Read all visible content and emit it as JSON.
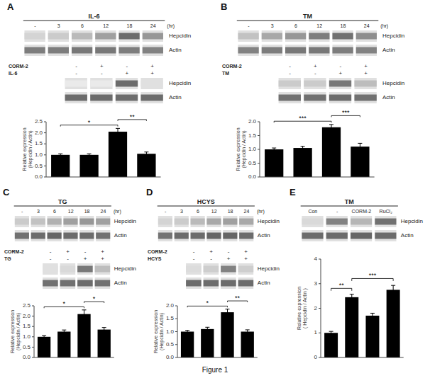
{
  "chart_data": [
    {
      "type": "blot",
      "panel": "A",
      "title": "IL-6",
      "categories": [
        "-",
        "3",
        "6",
        "12",
        "18",
        "24"
      ],
      "x_unit": "(hr)",
      "series": [
        {
          "name": "Hepcidin",
          "values": [
            0.25,
            0.3,
            0.4,
            0.55,
            0.85,
            0.6
          ]
        },
        {
          "name": "Actin",
          "values": [
            0.75,
            0.75,
            0.78,
            0.78,
            0.75,
            0.72
          ]
        }
      ]
    },
    {
      "type": "blot",
      "conditions": [
        {
          "name": "CORM-2",
          "labels": [
            "-",
            "+",
            "-",
            "+"
          ]
        },
        {
          "name": "IL-6",
          "labels": [
            "-",
            "-",
            "+",
            "+"
          ]
        }
      ],
      "series": [
        {
          "name": "Hepcidin",
          "values": [
            0.12,
            0.12,
            0.85,
            0.18
          ]
        },
        {
          "name": "Actin",
          "values": [
            0.85,
            0.85,
            0.85,
            0.85
          ]
        }
      ]
    },
    {
      "type": "bar",
      "categories": [
        null,
        null,
        null,
        null
      ],
      "values": [
        1.0,
        1.0,
        2.05,
        1.05
      ],
      "errors": [
        0.05,
        0.05,
        0.15,
        0.08
      ],
      "color": "#000000",
      "ylim": [
        0,
        2.5
      ],
      "yticks": [
        {
          "value": 0,
          "label": "0.0"
        },
        {
          "value": 0.5,
          "label": "0.5"
        },
        {
          "value": 1.0,
          "label": "1.0"
        },
        {
          "value": 1.5,
          "label": "1.5"
        },
        {
          "value": 2.0,
          "label": "2.0"
        },
        {
          "value": 2.5,
          "label": "2.5"
        }
      ],
      "y_label": "Relative expression\n(Hepcidin / Actin)",
      "significance": [
        {
          "from": 0,
          "to": 2,
          "label": "*"
        },
        {
          "from": 2,
          "to": 3,
          "label": "**"
        }
      ]
    },
    {
      "type": "blot",
      "panel": "B",
      "title": "TM",
      "categories": [
        "-",
        "3",
        "6",
        "12",
        "18",
        "24"
      ],
      "x_unit": "(hr)",
      "series": [
        {
          "name": "Hepcidin",
          "values": [
            0.35,
            0.5,
            0.6,
            0.75,
            0.82,
            0.65
          ]
        },
        {
          "name": "Actin",
          "values": [
            0.72,
            0.75,
            0.78,
            0.78,
            0.75,
            0.72
          ]
        }
      ]
    },
    {
      "type": "blot",
      "conditions": [
        {
          "name": "CORM-2",
          "labels": [
            "-",
            "+",
            "-",
            "+"
          ]
        },
        {
          "name": "TM",
          "labels": [
            "-",
            "-",
            "+",
            "+"
          ]
        }
      ],
      "series": [
        {
          "name": "Hepcidin",
          "values": [
            0.3,
            0.3,
            0.78,
            0.38
          ]
        },
        {
          "name": "Actin",
          "values": [
            0.82,
            0.82,
            0.85,
            0.82
          ]
        }
      ]
    },
    {
      "type": "bar",
      "categories": [
        null,
        null,
        null,
        null
      ],
      "values": [
        1.0,
        1.05,
        1.8,
        1.1
      ],
      "errors": [
        0.05,
        0.06,
        0.1,
        0.12
      ],
      "color": "#000000",
      "ylim": [
        0,
        2.0
      ],
      "yticks": [
        {
          "value": 0,
          "label": "0.0"
        },
        {
          "value": 0.5,
          "label": "0.5"
        },
        {
          "value": 1.0,
          "label": "1.0"
        },
        {
          "value": 1.5,
          "label": "1.5"
        },
        {
          "value": 2.0,
          "label": "2.0"
        }
      ],
      "y_label": "Relative expression\n(Hepcidin / Actin)",
      "significance": [
        {
          "from": 0,
          "to": 2,
          "label": "***"
        },
        {
          "from": 2,
          "to": 3,
          "label": "***"
        }
      ]
    },
    {
      "type": "blot",
      "panel": "C",
      "title": "TG",
      "categories": [
        "-",
        "3",
        "6",
        "12",
        "18",
        "24"
      ],
      "x_unit": "(hr)",
      "series": [
        {
          "name": "Hepcidin",
          "values": [
            0.3,
            0.35,
            0.45,
            0.55,
            0.6,
            0.55
          ]
        },
        {
          "name": "Actin",
          "values": [
            0.82,
            0.85,
            0.88,
            0.85,
            0.85,
            0.82
          ]
        }
      ]
    },
    {
      "type": "blot",
      "conditions": [
        {
          "name": "CORM-2",
          "labels": [
            "-",
            "+",
            "-",
            "+"
          ]
        },
        {
          "name": "TG",
          "labels": [
            "-",
            "-",
            "+",
            "+"
          ]
        }
      ],
      "series": [
        {
          "name": "Hepcidin",
          "values": [
            0.18,
            0.22,
            0.78,
            0.38
          ]
        },
        {
          "name": "Actin",
          "values": [
            0.82,
            0.82,
            0.85,
            0.82
          ]
        }
      ]
    },
    {
      "type": "bar",
      "categories": [
        null,
        null,
        null,
        null
      ],
      "values": [
        1.0,
        1.25,
        2.1,
        1.35
      ],
      "errors": [
        0.06,
        0.08,
        0.2,
        0.1
      ],
      "color": "#000000",
      "ylim": [
        0,
        2.5
      ],
      "yticks": [
        {
          "value": 0,
          "label": "0.0"
        },
        {
          "value": 0.5,
          "label": "0.5"
        },
        {
          "value": 1.0,
          "label": "1.0"
        },
        {
          "value": 1.5,
          "label": "1.5"
        },
        {
          "value": 2.0,
          "label": "2.0"
        },
        {
          "value": 2.5,
          "label": "2.5"
        }
      ],
      "y_label": "Relative expression\n(Hepcidin / Actin)",
      "significance": [
        {
          "from": 0,
          "to": 2,
          "label": "*"
        },
        {
          "from": 2,
          "to": 3,
          "label": "*"
        }
      ]
    },
    {
      "type": "blot",
      "panel": "D",
      "title": "HCYS",
      "categories": [
        "-",
        "3",
        "6",
        "12",
        "18",
        "24"
      ],
      "x_unit": "(hr)",
      "series": [
        {
          "name": "Hepcidin",
          "values": [
            0.25,
            0.3,
            0.4,
            0.5,
            0.55,
            0.5
          ]
        },
        {
          "name": "Actin",
          "values": [
            0.8,
            0.85,
            0.85,
            0.88,
            0.88,
            0.85
          ]
        }
      ]
    },
    {
      "type": "blot",
      "conditions": [
        {
          "name": "CORM-2",
          "labels": [
            "-",
            "+",
            "-",
            "+"
          ]
        },
        {
          "name": "HCYS",
          "labels": [
            "-",
            "-",
            "+",
            "+"
          ]
        }
      ],
      "series": [
        {
          "name": "Hepcidin",
          "values": [
            0.2,
            0.28,
            0.72,
            0.28
          ]
        },
        {
          "name": "Actin",
          "values": [
            0.85,
            0.85,
            0.85,
            0.85
          ]
        }
      ]
    },
    {
      "type": "bar",
      "categories": [
        null,
        null,
        null,
        null
      ],
      "values": [
        1.0,
        1.1,
        1.75,
        1.0
      ],
      "errors": [
        0.05,
        0.07,
        0.12,
        0.07
      ],
      "color": "#000000",
      "ylim": [
        0,
        2.0
      ],
      "yticks": [
        {
          "value": 0,
          "label": "0.0"
        },
        {
          "value": 0.5,
          "label": "0.5"
        },
        {
          "value": 1.0,
          "label": "1.0"
        },
        {
          "value": 1.5,
          "label": "1.5"
        },
        {
          "value": 2.0,
          "label": "2.0"
        }
      ],
      "y_label": "Relative expression\n(Hepcidin / Actin)",
      "significance": [
        {
          "from": 0,
          "to": 2,
          "label": "*"
        },
        {
          "from": 2,
          "to": 3,
          "label": "**"
        }
      ]
    },
    {
      "type": "blot",
      "panel": "E",
      "title": "TM",
      "categories": [
        "Con",
        "-",
        "CORM-2",
        "RuCl₂"
      ],
      "series": [
        {
          "name": "Hepcidin",
          "values": [
            0.22,
            0.72,
            0.42,
            0.82
          ]
        },
        {
          "name": "Actin",
          "values": [
            0.85,
            0.85,
            0.88,
            0.85
          ]
        }
      ]
    },
    {
      "type": "bar",
      "categories": [
        null,
        null,
        null,
        null
      ],
      "values": [
        1.0,
        2.45,
        1.7,
        2.75
      ],
      "errors": [
        0.06,
        0.12,
        0.1,
        0.18
      ],
      "color": "#000000",
      "ylim": [
        0,
        4
      ],
      "yticks": [
        0,
        1,
        2,
        3,
        4
      ],
      "y_label": "Relative expression\n( Hepcidin / Actin )",
      "significance": [
        {
          "from": 0,
          "to": 1,
          "label": "**"
        },
        {
          "from": 1,
          "to": 3,
          "label": "***"
        }
      ]
    }
  ],
  "figure_label": "Figure 1"
}
